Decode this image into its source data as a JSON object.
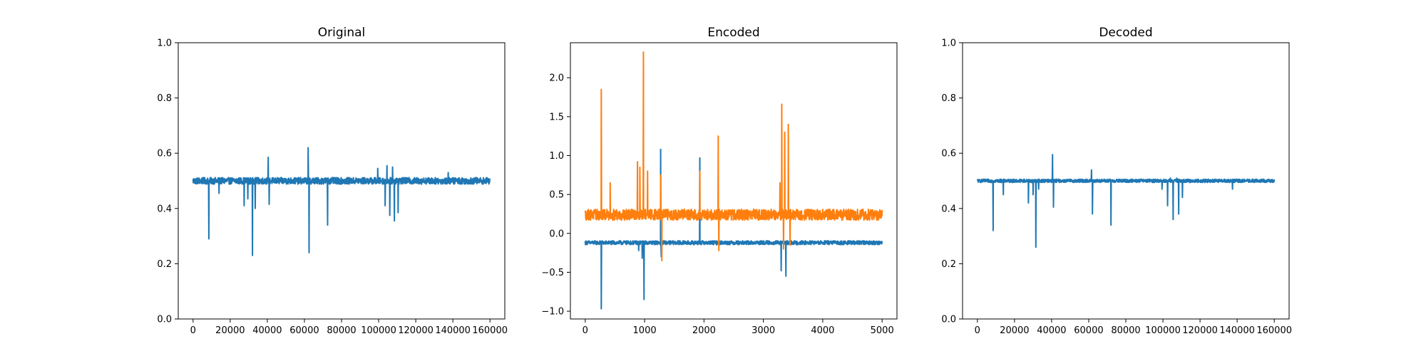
{
  "colors": {
    "blue": "#1f77b4",
    "orange": "#ff7f0e"
  },
  "chart_data": [
    {
      "type": "line",
      "title": "Original",
      "xlabel": "",
      "ylabel": "",
      "xlim": [
        -8000,
        168000
      ],
      "ylim": [
        0.0,
        1.0
      ],
      "xticks": [
        0,
        20000,
        40000,
        60000,
        80000,
        100000,
        120000,
        140000,
        160000
      ],
      "xtick_labels": [
        "0",
        "20000",
        "40000",
        "60000",
        "80000",
        "100000",
        "120000",
        "140000",
        "160000"
      ],
      "yticks": [
        0.0,
        0.2,
        0.4,
        0.6,
        0.8,
        1.0
      ],
      "ytick_labels": [
        "0.0",
        "0.2",
        "0.4",
        "0.6",
        "0.8",
        "1.0"
      ],
      "grid": false,
      "series": [
        {
          "color": "#1f77b4",
          "baseline": 0.5,
          "noise": 0.012,
          "x_range": [
            0,
            160000
          ],
          "spikes": [
            {
              "x": 8500,
              "y": 0.29
            },
            {
              "x": 14000,
              "y": 0.455
            },
            {
              "x": 27500,
              "y": 0.41
            },
            {
              "x": 29500,
              "y": 0.435
            },
            {
              "x": 32000,
              "y": 0.23
            },
            {
              "x": 33500,
              "y": 0.4
            },
            {
              "x": 40500,
              "y": 0.585
            },
            {
              "x": 41000,
              "y": 0.415
            },
            {
              "x": 62000,
              "y": 0.62
            },
            {
              "x": 62500,
              "y": 0.24
            },
            {
              "x": 72500,
              "y": 0.34
            },
            {
              "x": 99500,
              "y": 0.545
            },
            {
              "x": 103500,
              "y": 0.41
            },
            {
              "x": 104500,
              "y": 0.555
            },
            {
              "x": 106000,
              "y": 0.375
            },
            {
              "x": 107500,
              "y": 0.55
            },
            {
              "x": 108500,
              "y": 0.355
            },
            {
              "x": 110500,
              "y": 0.385
            },
            {
              "x": 137500,
              "y": 0.53
            }
          ]
        }
      ]
    },
    {
      "type": "line",
      "title": "Encoded",
      "xlabel": "",
      "ylabel": "",
      "xlim": [
        -250,
        5250
      ],
      "ylim": [
        -1.1,
        2.45
      ],
      "xticks": [
        0,
        1000,
        2000,
        3000,
        4000,
        5000
      ],
      "xtick_labels": [
        "0",
        "1000",
        "2000",
        "3000",
        "4000",
        "5000"
      ],
      "yticks": [
        -1.0,
        -0.5,
        0.0,
        0.5,
        1.0,
        1.5,
        2.0
      ],
      "ytick_labels": [
        "−1.0",
        "−0.5",
        "0.0",
        "0.5",
        "1.0",
        "1.5",
        "2.0"
      ],
      "grid": false,
      "series": [
        {
          "color": "#1f77b4",
          "baseline": -0.12,
          "noise": 0.025,
          "x_range": [
            0,
            5000
          ],
          "spikes": [
            {
              "x": 270,
              "y": -0.97
            },
            {
              "x": 900,
              "y": -0.22
            },
            {
              "x": 960,
              "y": -0.32
            },
            {
              "x": 990,
              "y": -0.85
            },
            {
              "x": 1270,
              "y": 1.08
            },
            {
              "x": 1280,
              "y": -0.3
            },
            {
              "x": 1930,
              "y": 0.97
            },
            {
              "x": 3300,
              "y": -0.48
            },
            {
              "x": 3380,
              "y": -0.55
            }
          ]
        },
        {
          "color": "#ff7f0e",
          "baseline": 0.24,
          "noise": 0.07,
          "x_range": [
            0,
            5000
          ],
          "spikes": [
            {
              "x": 270,
              "y": 1.85
            },
            {
              "x": 420,
              "y": 0.65
            },
            {
              "x": 880,
              "y": 0.92
            },
            {
              "x": 920,
              "y": 0.85
            },
            {
              "x": 980,
              "y": 2.33
            },
            {
              "x": 1050,
              "y": 0.8
            },
            {
              "x": 1270,
              "y": 0.75
            },
            {
              "x": 1290,
              "y": -0.35
            },
            {
              "x": 1930,
              "y": 0.8
            },
            {
              "x": 2240,
              "y": 1.25
            },
            {
              "x": 2250,
              "y": -0.22
            },
            {
              "x": 3280,
              "y": 0.65
            },
            {
              "x": 3310,
              "y": 1.66
            },
            {
              "x": 3340,
              "y": -0.2
            },
            {
              "x": 3360,
              "y": 1.3
            },
            {
              "x": 3420,
              "y": 1.4
            },
            {
              "x": 3450,
              "y": -0.15
            }
          ]
        }
      ]
    },
    {
      "type": "line",
      "title": "Decoded",
      "xlabel": "",
      "ylabel": "",
      "xlim": [
        -8000,
        168000
      ],
      "ylim": [
        0.0,
        1.0
      ],
      "xticks": [
        0,
        20000,
        40000,
        60000,
        80000,
        100000,
        120000,
        140000,
        160000
      ],
      "xtick_labels": [
        "0",
        "20000",
        "40000",
        "60000",
        "80000",
        "100000",
        "120000",
        "140000",
        "160000"
      ],
      "yticks": [
        0.0,
        0.2,
        0.4,
        0.6,
        0.8,
        1.0
      ],
      "ytick_labels": [
        "0.0",
        "0.2",
        "0.4",
        "0.6",
        "0.8",
        "1.0"
      ],
      "grid": false,
      "series": [
        {
          "color": "#1f77b4",
          "baseline": 0.5,
          "noise": 0.006,
          "x_range": [
            0,
            160000
          ],
          "spikes": [
            {
              "x": 8500,
              "y": 0.32
            },
            {
              "x": 14000,
              "y": 0.45
            },
            {
              "x": 27500,
              "y": 0.42
            },
            {
              "x": 30000,
              "y": 0.45
            },
            {
              "x": 31500,
              "y": 0.26
            },
            {
              "x": 33000,
              "y": 0.47
            },
            {
              "x": 40500,
              "y": 0.595
            },
            {
              "x": 41000,
              "y": 0.405
            },
            {
              "x": 61500,
              "y": 0.54
            },
            {
              "x": 62000,
              "y": 0.38
            },
            {
              "x": 72000,
              "y": 0.34
            },
            {
              "x": 99500,
              "y": 0.47
            },
            {
              "x": 102500,
              "y": 0.41
            },
            {
              "x": 104000,
              "y": 0.51
            },
            {
              "x": 105500,
              "y": 0.36
            },
            {
              "x": 107500,
              "y": 0.51
            },
            {
              "x": 108500,
              "y": 0.38
            },
            {
              "x": 110500,
              "y": 0.44
            },
            {
              "x": 137500,
              "y": 0.47
            }
          ]
        }
      ]
    }
  ]
}
